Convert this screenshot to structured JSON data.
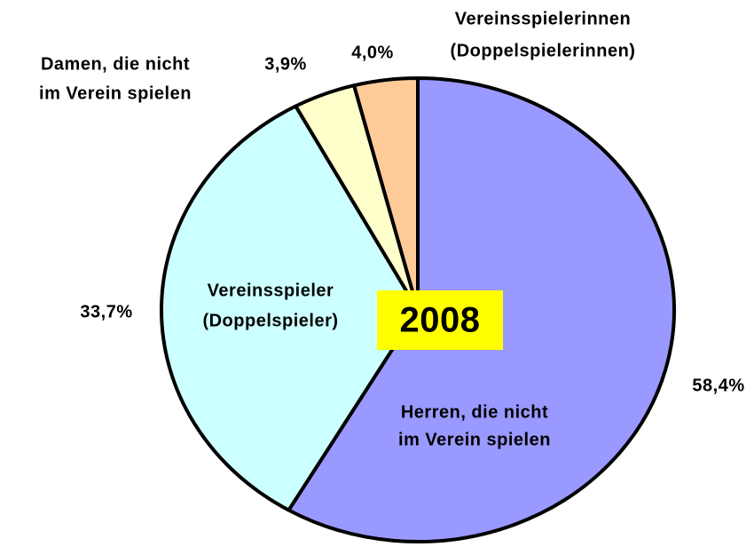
{
  "chart_data": {
    "type": "pie",
    "categories": [
      [
        "Herren, die nicht",
        "im Verein spielen"
      ],
      [
        "Vereinsspieler",
        "(Doppelspieler)"
      ],
      [
        "Damen, die nicht",
        "im Verein spielen"
      ],
      [
        "Vereinsspielerinnen",
        "(Doppelspielerinnen)"
      ]
    ],
    "values": [
      58.4,
      33.7,
      3.9,
      4.0
    ],
    "value_labels": [
      "58,4%",
      "33,7%",
      "3,9%",
      "4,0%"
    ],
    "colors": [
      "#9999ff",
      "#ccffff",
      "#ffffcc",
      "#ffcc99"
    ],
    "annotation": "2008"
  }
}
